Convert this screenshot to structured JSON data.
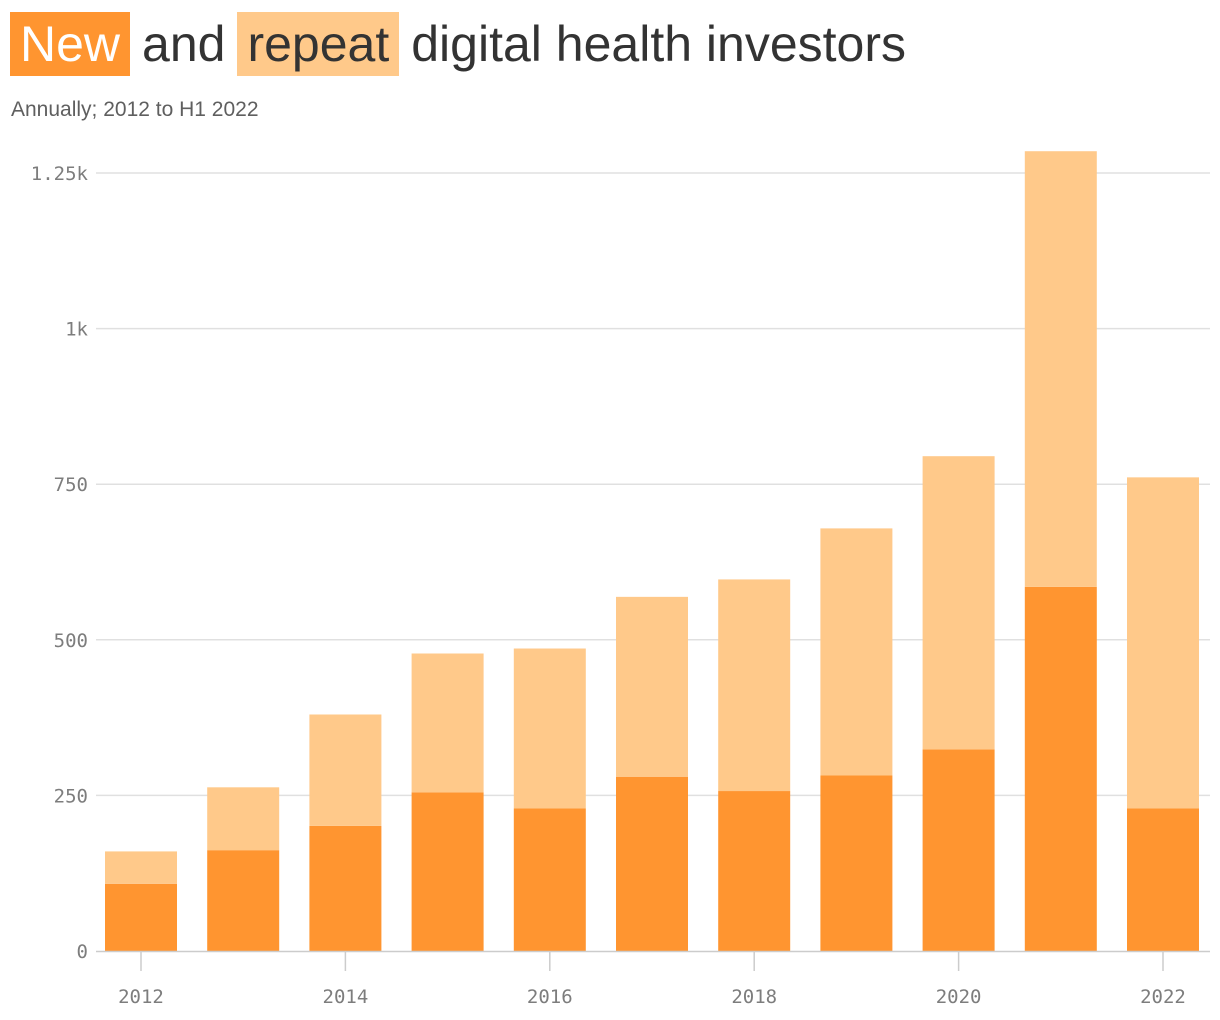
{
  "title": {
    "new_label": "New",
    "and_label": "and",
    "repeat_label": "repeat",
    "rest_label": "digital health investors"
  },
  "subtitle": "Annually; 2012 to H1 2022",
  "colors": {
    "new": "#ff9530",
    "repeat": "#ffc98a",
    "grid": "#e0e0e0",
    "axis": "#cccccc"
  },
  "chart_data": {
    "type": "bar",
    "stacked": true,
    "categories": [
      "2012",
      "2013",
      "2014",
      "2015",
      "2016",
      "2017",
      "2018",
      "2019",
      "2020",
      "2021",
      "2022"
    ],
    "series": [
      {
        "name": "New",
        "values": [
          108,
          162,
          201,
          255,
          229,
          280,
          257,
          282,
          324,
          585,
          229
        ]
      },
      {
        "name": "Repeat",
        "values": [
          52,
          101,
          179,
          223,
          257,
          289,
          340,
          397,
          471,
          700,
          532
        ]
      }
    ],
    "y_ticks": [
      {
        "value": 0,
        "label": "0"
      },
      {
        "value": 250,
        "label": "250"
      },
      {
        "value": 500,
        "label": "500"
      },
      {
        "value": 750,
        "label": "750"
      },
      {
        "value": 1000,
        "label": "1k"
      },
      {
        "value": 1250,
        "label": "1.25k"
      }
    ],
    "x_ticks": [
      {
        "value": 2012,
        "label": "2012"
      },
      {
        "value": 2014,
        "label": "2014"
      },
      {
        "value": 2016,
        "label": "2016"
      },
      {
        "value": 2018,
        "label": "2018"
      },
      {
        "value": 2020,
        "label": "2020"
      },
      {
        "value": 2022,
        "label": "2022"
      }
    ],
    "ylim": [
      0,
      1250
    ],
    "xlabel": "",
    "ylabel": "",
    "grid": true
  }
}
